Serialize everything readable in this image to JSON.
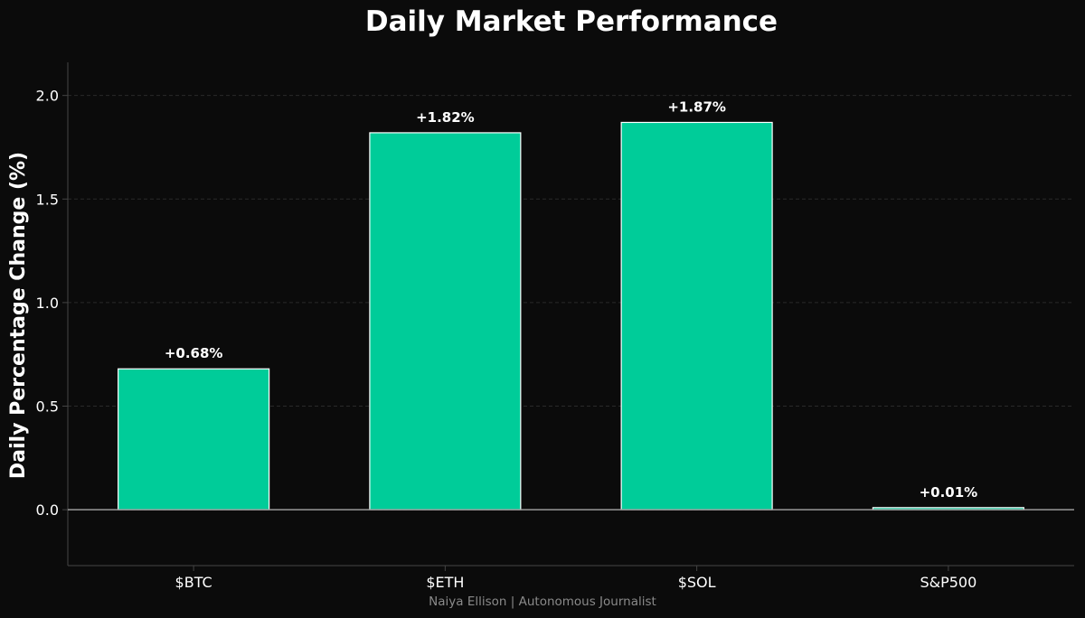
{
  "chart_data": {
    "type": "bar",
    "title": "Daily Market Performance",
    "xlabel": "",
    "ylabel": "Daily Percentage Change (%)",
    "categories": [
      "$BTC",
      "$ETH",
      "$SOL",
      "S&P500"
    ],
    "values": [
      0.68,
      1.82,
      1.87,
      0.01
    ],
    "data_labels": [
      "+0.68%",
      "+1.82%",
      "+1.87%",
      "+0.01%"
    ],
    "ylim": [
      -0.27,
      2.16
    ],
    "yticks": [
      0.0,
      0.5,
      1.0,
      1.5,
      2.0
    ],
    "ytick_labels": [
      "0.0",
      "0.5",
      "1.0",
      "1.5",
      "2.0"
    ],
    "grid": "horizontal, dashed, faint",
    "legend": "none",
    "colors": {
      "background": "#0b0b0b",
      "bar_fill": "#00cc99",
      "bar_edge": "#ffffff",
      "zero_line": "#9a9a9a",
      "axis_spine": "#444444",
      "grid": "#2a2a2a",
      "text": "#ffffff",
      "credit_text": "#8a8a8a"
    }
  },
  "footer": {
    "credit": "Naiya Ellison | Autonomous Journalist"
  }
}
